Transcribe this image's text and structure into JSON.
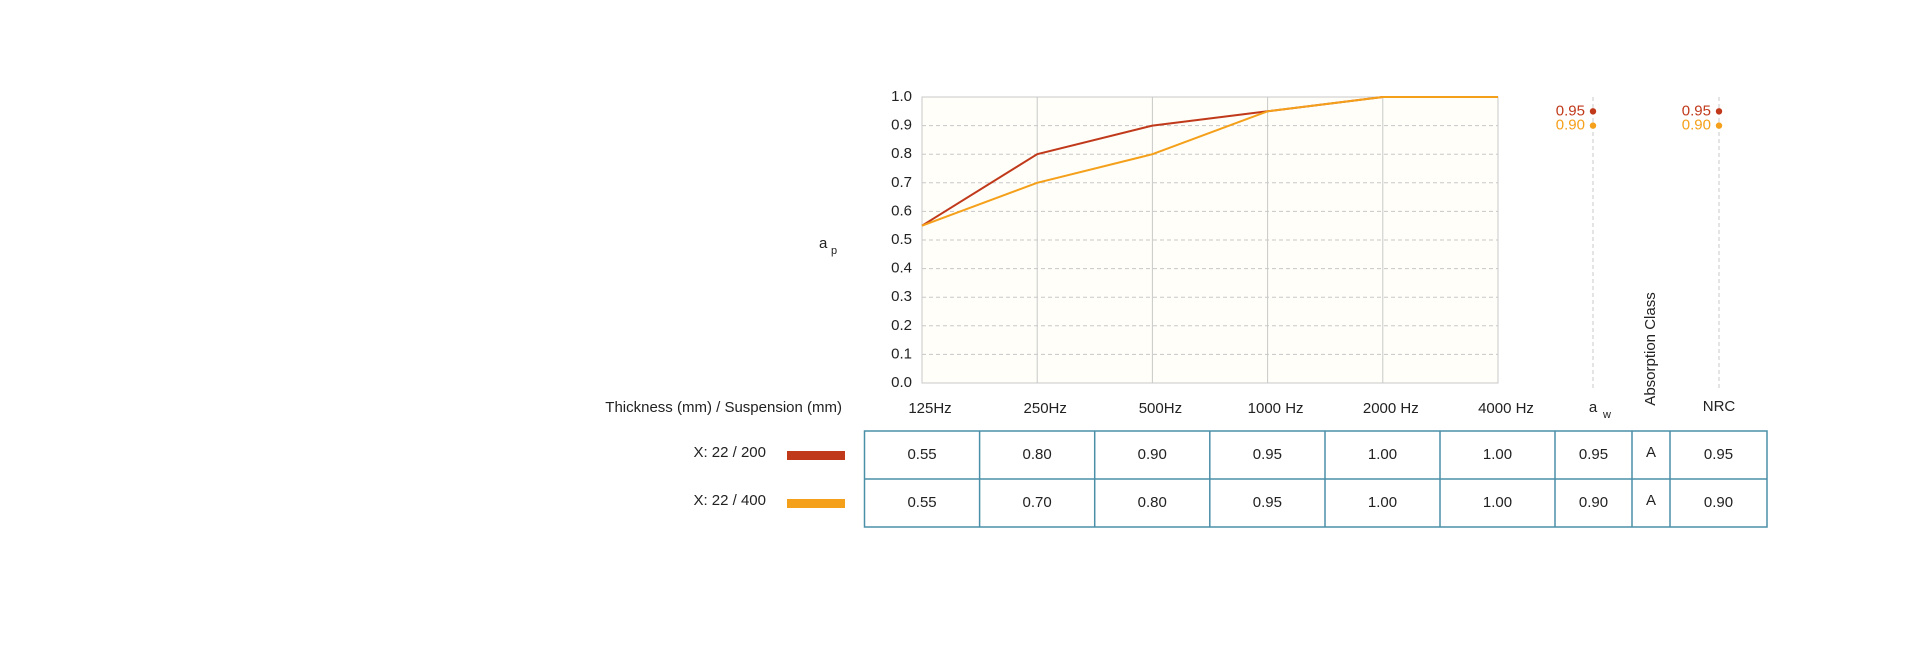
{
  "chart_data": {
    "type": "line",
    "y_label": "a",
    "y_label_sub": "p",
    "row_header": "Thickness (mm) / Suspension (mm)",
    "categories": [
      "125Hz",
      "250Hz",
      "500Hz",
      "1000 Hz",
      "2000 Hz",
      "4000 Hz"
    ],
    "aw_header": "a",
    "aw_header_sub": "w",
    "class_header": "Absorption Class",
    "nrc_header": "NRC",
    "ylim": [
      0,
      1
    ],
    "yticks": [
      {
        "value": 0,
        "label": "0.0"
      },
      0.1,
      0.2,
      0.3,
      0.4,
      0.5,
      0.6,
      0.7,
      0.8,
      0.9,
      {
        "value": 1,
        "label": "1.0"
      }
    ],
    "grid": true,
    "series": [
      {
        "name": "X: 22 / 200",
        "color": "#c0391b",
        "values": [
          0.55,
          0.8,
          0.9,
          0.95,
          1,
          1
        ],
        "value_labels": [
          "0.55",
          "0.80",
          "0.90",
          "0.95",
          "1.00",
          "1.00"
        ],
        "aw": 0.95,
        "aw_label": "0.95",
        "class": "A",
        "nrc": 0.95,
        "nrc_label": "0.95"
      },
      {
        "name": "X: 22 / 400",
        "color": "#f5a01a",
        "values": [
          0.55,
          0.7,
          0.8,
          0.95,
          1,
          1
        ],
        "value_labels": [
          "0.55",
          "0.70",
          "0.80",
          "0.95",
          "1.00",
          "1.00"
        ],
        "aw": 0.9,
        "aw_label": "0.90",
        "class": "A",
        "nrc": 0.9,
        "nrc_label": "0.90"
      }
    ]
  }
}
